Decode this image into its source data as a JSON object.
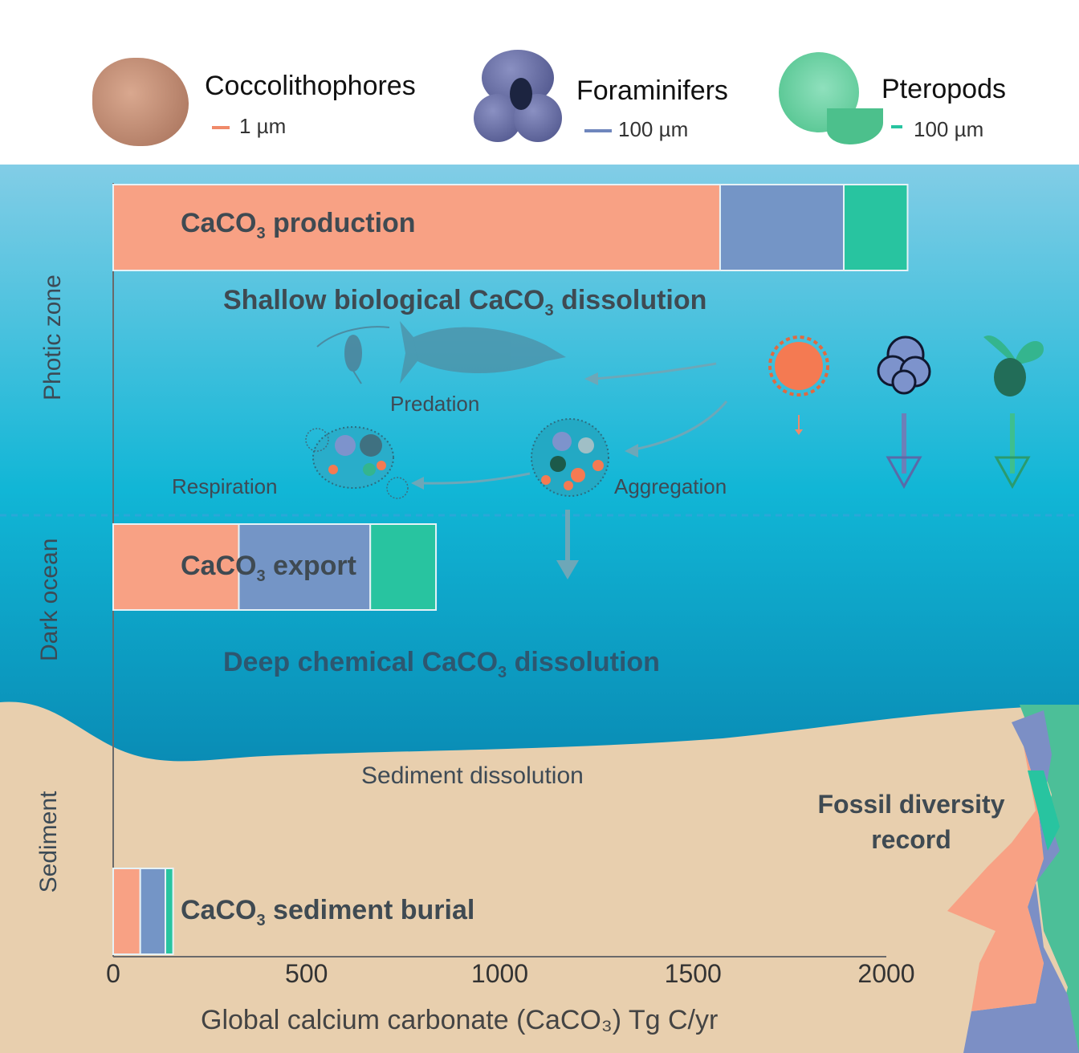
{
  "legend": [
    {
      "name": "Coccolithophores",
      "scale": "1 µm",
      "color": "#f08a6a"
    },
    {
      "name": "Foraminifers",
      "scale": "100 µm",
      "color": "#6f86bd"
    },
    {
      "name": "Pteropods",
      "scale": "100 µm",
      "color": "#28c4a0"
    }
  ],
  "zones": [
    "Photic zone",
    "Dark ocean",
    "Sediment"
  ],
  "processes": {
    "shallow": "Shallow biological CaCO3 dissolution",
    "deep": "Deep chemical CaCO3 dissolution",
    "predation": "Predation",
    "respiration": "Respiration",
    "aggregation": "Aggregation",
    "sediment_dissolution": "Sediment dissolution",
    "fossil_line1": "Fossil diversity",
    "fossil_line2": "record"
  },
  "chart_data": {
    "type": "bar",
    "orientation": "horizontal",
    "stacked": true,
    "categories": [
      "CaCO3 production",
      "CaCO3 export",
      "CaCO3 sediment burial"
    ],
    "series": [
      {
        "name": "Coccolithophores",
        "values": [
          1570,
          325,
          70
        ],
        "color": "#f8a184"
      },
      {
        "name": "Foraminifers",
        "values": [
          320,
          340,
          65
        ],
        "color": "#7495c6"
      },
      {
        "name": "Pteropods",
        "values": [
          165,
          170,
          20
        ],
        "color": "#28c4a0"
      }
    ],
    "xlim": [
      0,
      2000
    ],
    "xticks": [
      0,
      500,
      1000,
      1500,
      2000
    ],
    "xlabel": "Global calcium carbonate (CaCO₃) Tg C/yr"
  },
  "colors": {
    "sky_top": "#86cfe6",
    "photic": "#1fbbd8",
    "dark_ocean": "#0a7faa",
    "sediment": "#e8cfae"
  }
}
